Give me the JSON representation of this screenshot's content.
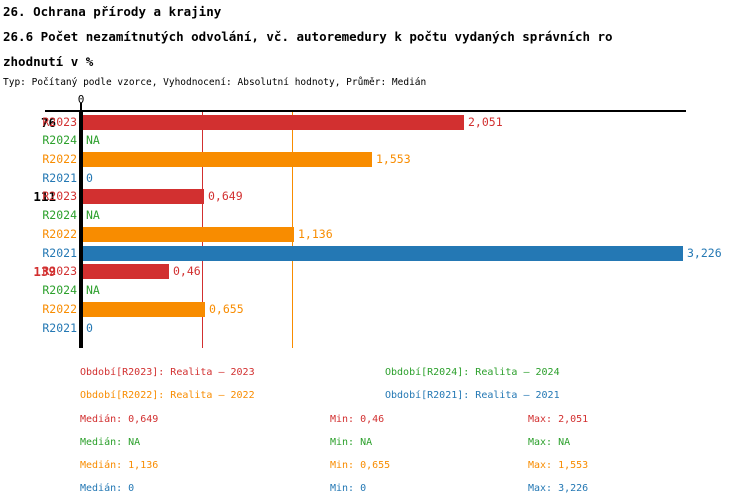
{
  "header": {
    "title_line1": "26. Ochrana přírody a krajiny",
    "title_line2": "26.6 Počet nezamítnutých odvolání, vč. autoremedury k počtu vydaných správních ro",
    "title_line3": "zhodnutí v %",
    "subtitle": "Typ: Počítaný podle vzorce, Vyhodnocení: Absolutní hodnoty, Průměr: Medián"
  },
  "colors": {
    "R2023": "#d23030",
    "R2024": "#2ca02c",
    "R2022": "#f88c00",
    "R2021": "#2478b4",
    "axis": "#000000",
    "group_label_default": "#000000",
    "group_label_highlight": "#d23030"
  },
  "chart_data": {
    "type": "bar",
    "orientation": "horizontal",
    "title": "26.6 Počet nezamítnutých odvolání, vč. autoremedury k počtu vydaných správních rozhodnutí v %",
    "axis": {
      "zero_label": "0",
      "xlim": [
        0,
        3.25
      ],
      "grid": "median-lines-only"
    },
    "median_lines": [
      {
        "series": "R2023",
        "value": 0.649
      },
      {
        "series": "R2022",
        "value": 1.136
      }
    ],
    "groups": [
      {
        "label": "76",
        "highlight": false,
        "bars": [
          {
            "series": "R2023",
            "value": 2.051,
            "label": "2,051"
          },
          {
            "series": "R2024",
            "value": null,
            "label": "NA"
          },
          {
            "series": "R2022",
            "value": 1.553,
            "label": "1,553"
          },
          {
            "series": "R2021",
            "value": 0,
            "label": "0"
          }
        ]
      },
      {
        "label": "111",
        "highlight": false,
        "bars": [
          {
            "series": "R2023",
            "value": 0.649,
            "label": "0,649"
          },
          {
            "series": "R2024",
            "value": null,
            "label": "NA"
          },
          {
            "series": "R2022",
            "value": 1.136,
            "label": "1,136"
          },
          {
            "series": "R2021",
            "value": 3.226,
            "label": "3,226"
          }
        ]
      },
      {
        "label": "139",
        "highlight": true,
        "bars": [
          {
            "series": "R2023",
            "value": 0.46,
            "label": "0,46"
          },
          {
            "series": "R2024",
            "value": null,
            "label": "NA"
          },
          {
            "series": "R2022",
            "value": 0.655,
            "label": "0,655"
          },
          {
            "series": "R2021",
            "value": 0,
            "label": "0"
          }
        ]
      }
    ]
  },
  "legend": [
    {
      "series": "R2023",
      "text": "Období[R2023]: Realita – 2023"
    },
    {
      "series": "R2024",
      "text": "Období[R2024]: Realita – 2024"
    },
    {
      "series": "R2022",
      "text": "Období[R2022]: Realita – 2022"
    },
    {
      "series": "R2021",
      "text": "Období[R2021]: Realita – 2021"
    }
  ],
  "stats": [
    {
      "series": "R2023",
      "median": "Medián: 0,649",
      "min": "Min: 0,46",
      "max": "Max: 2,051"
    },
    {
      "series": "R2024",
      "median": "Medián: NA",
      "min": "Min: NA",
      "max": "Max: NA"
    },
    {
      "series": "R2022",
      "median": "Medián: 1,136",
      "min": "Min: 0,655",
      "max": "Max: 1,553"
    },
    {
      "series": "R2021",
      "median": "Medián: 0",
      "min": "Min: 0",
      "max": "Max: 3,226"
    }
  ]
}
